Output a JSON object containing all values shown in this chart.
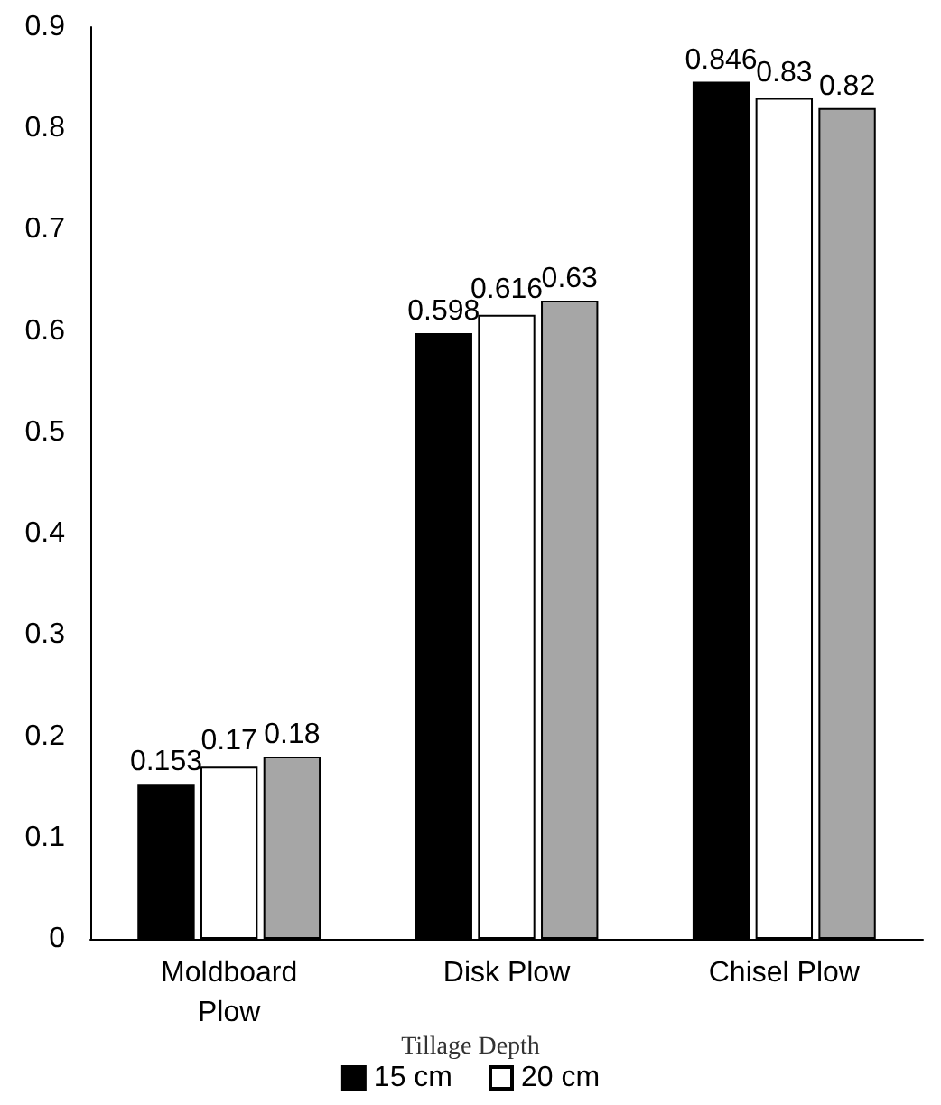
{
  "chart_data": {
    "type": "bar",
    "categories": [
      "Moldboard\nPlow",
      "Disk Plow",
      "Chisel Plow"
    ],
    "series": [
      {
        "name": "15 cm",
        "color": "#000000",
        "values": [
          0.153,
          0.598,
          0.846
        ]
      },
      {
        "name": "20 cm",
        "color": "#ffffff",
        "values": [
          0.17,
          0.616,
          0.83
        ]
      },
      {
        "color": "#a6a6a6",
        "values": [
          0.18,
          0.63,
          0.82
        ]
      }
    ],
    "legend_title": "Tillage Depth",
    "legend": "bottom",
    "data_labels": true,
    "grid": false,
    "ylim": [
      0,
      0.9
    ],
    "yticks": [
      0,
      0.1,
      0.2,
      0.3,
      0.4,
      0.5,
      0.6,
      0.7,
      0.8,
      0.9
    ]
  }
}
